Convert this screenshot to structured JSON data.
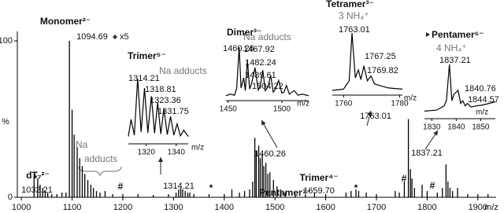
{
  "chart_data": [
    {
      "type": "bar",
      "xlabel": "m/z",
      "ylabel": "%",
      "color": "#000000",
      "xlim": [
        992,
        1936
      ],
      "ylim": [
        0,
        106
      ],
      "xticks": [
        1000,
        1100,
        1200,
        1300,
        1400,
        1500,
        1600,
        1700,
        1800,
        1900
      ],
      "yticks": [
        0,
        100
      ],
      "x": [
        1025,
        1032.21,
        1037,
        1042,
        1047,
        1052,
        1060,
        1070,
        1080,
        1088,
        1094.69,
        1100,
        1104,
        1110,
        1115,
        1120,
        1125,
        1131,
        1137,
        1142,
        1148,
        1155,
        1165,
        1180,
        1200,
        1230,
        1260,
        1290,
        1305,
        1310,
        1314.21,
        1318,
        1323,
        1328,
        1332,
        1340,
        1370,
        1400,
        1415,
        1430,
        1440,
        1450,
        1456,
        1460.26,
        1463,
        1467.9,
        1471,
        1475,
        1478,
        1482,
        1486,
        1490,
        1497,
        1504,
        1511,
        1520,
        1540,
        1560,
        1578,
        1600,
        1640,
        1650,
        1659.7,
        1665,
        1680,
        1700,
        1737,
        1745,
        1755,
        1763.01,
        1767,
        1770,
        1775,
        1790,
        1800,
        1820,
        1830,
        1837.21,
        1841,
        1845,
        1850,
        1860,
        1880,
        1900,
        1920
      ],
      "values": [
        15,
        12,
        8,
        6,
        4,
        3,
        2,
        2,
        3,
        3,
        100,
        56,
        40,
        32,
        25,
        20,
        15,
        11,
        8,
        6,
        4,
        3,
        4,
        2,
        2,
        2,
        1.5,
        2,
        3,
        5,
        6,
        5,
        4,
        3,
        3,
        2,
        2,
        2,
        5,
        3,
        4,
        5,
        10,
        38,
        30,
        33,
        25,
        28,
        20,
        22,
        15,
        16,
        11,
        7,
        5,
        3,
        2,
        2,
        3,
        2,
        3,
        4,
        5,
        4,
        3,
        2,
        4,
        3,
        10,
        50,
        18,
        12,
        6,
        8,
        4,
        3,
        6,
        21,
        10,
        6,
        4,
        6,
        2,
        2,
        2
      ],
      "peak_labels": [
        1032.21,
        1094.69,
        1314.21,
        1460.26,
        {
          "value": 1659.7,
          "label": "1659.70"
        },
        1763.01,
        1837.21
      ],
      "annotations": [
        "Monomer²⁻",
        "dT₇²⁻",
        "Trimer⁴⁻",
        "Pentamer⁷⁻",
        "x5"
      ],
      "na_label": [
        "Na",
        "adducts"
      ],
      "markers": [
        "*",
        "#",
        "*",
        "*",
        "#",
        "#"
      ]
    },
    {
      "type": "line",
      "title": "Trimer⁵⁻",
      "subtitle": "Na adducts",
      "xlabel": "m/z",
      "xlim": [
        1308,
        1348
      ],
      "ylim": [
        0,
        100
      ],
      "xticks": [
        1320,
        1340
      ],
      "x": [
        1308,
        1309.8,
        1312,
        1314.21,
        1316.5,
        1318.81,
        1321,
        1323.36,
        1325.5,
        1327.6,
        1329.7,
        1331.75,
        1334,
        1336.2,
        1338.4,
        1340.6,
        1342.8,
        1345,
        1348
      ],
      "values": [
        8,
        35,
        10,
        100,
        15,
        85,
        14,
        72,
        13,
        62,
        12,
        52,
        11,
        40,
        10,
        28,
        9,
        18,
        8
      ],
      "peak_labels": [
        1314.21,
        1318.81,
        1323.36,
        1331.75
      ]
    },
    {
      "type": "line",
      "title": "Dimer³⁻",
      "subtitle": "Na adducts",
      "xlabel": "m/z",
      "xlim": [
        1448,
        1525
      ],
      "ylim": [
        0,
        100
      ],
      "xticks": [
        1450,
        1500
      ],
      "x": [
        1448,
        1452,
        1456,
        1458,
        1460.26,
        1462,
        1464.5,
        1466,
        1467.92,
        1470,
        1472,
        1475,
        1478,
        1480,
        1482.24,
        1484.5,
        1487,
        1489.61,
        1492,
        1494,
        1497,
        1500,
        1502,
        1504.22,
        1507,
        1511.5,
        1515,
        1519,
        1525
      ],
      "values": [
        5,
        8,
        6,
        20,
        100,
        20,
        40,
        15,
        75,
        18,
        30,
        60,
        16,
        25,
        55,
        15,
        22,
        45,
        12,
        18,
        35,
        10,
        12,
        25,
        8,
        15,
        6,
        8,
        5
      ],
      "peak_labels": [
        1460.26,
        1467.92,
        1482.24,
        1489.61,
        1504.22
      ]
    },
    {
      "type": "line",
      "title": "Tetramer³⁻",
      "subtitle": "3 NH₄⁺",
      "xlabel": "m/z",
      "xlim": [
        1756,
        1781
      ],
      "ylim": [
        0,
        100
      ],
      "xticks": [
        1760,
        1780
      ],
      "x": [
        1756,
        1760,
        1762,
        1763.01,
        1764.2,
        1765.3,
        1766.2,
        1767.25,
        1768.5,
        1769.82,
        1771,
        1773,
        1776,
        1781
      ],
      "values": [
        4,
        6,
        20,
        100,
        25,
        38,
        22,
        45,
        20,
        28,
        15,
        12,
        8,
        6
      ],
      "peak_labels": [
        1763.01,
        1767.25,
        1769.82
      ]
    },
    {
      "type": "line",
      "title": "Pentamer⁶⁻",
      "subtitle": "4 NH₄⁺",
      "xlabel": "m/z",
      "xlim": [
        1827,
        1856
      ],
      "ylim": [
        0,
        100
      ],
      "xticks": [
        1830,
        1840,
        1850
      ],
      "x": [
        1827,
        1832,
        1835,
        1836,
        1837.21,
        1838.2,
        1839,
        1840.76,
        1841.8,
        1842.7,
        1843.7,
        1844.57,
        1846,
        1848,
        1851,
        1856
      ],
      "values": [
        10,
        12,
        20,
        30,
        100,
        30,
        42,
        50,
        25,
        30,
        20,
        25,
        18,
        20,
        22,
        28
      ],
      "peak_labels": [
        1837.21,
        1840.76,
        1844.57
      ]
    }
  ]
}
